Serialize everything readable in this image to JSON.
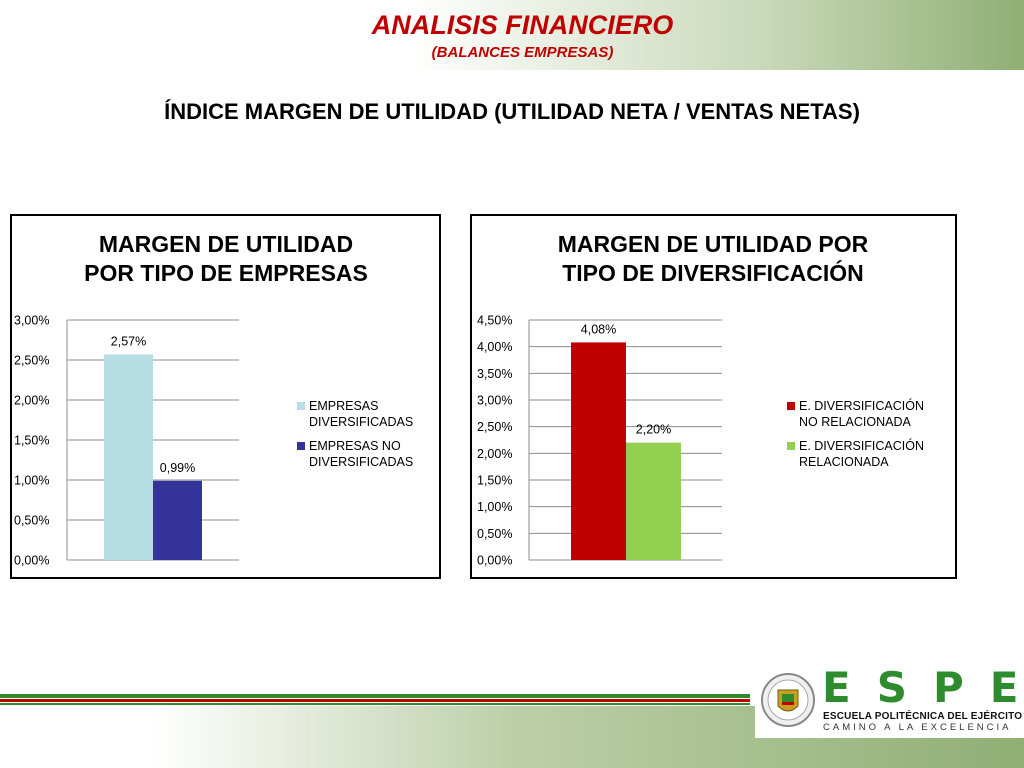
{
  "header": {
    "title": "ANALISIS FINANCIERO",
    "subtitle": "(BALANCES EMPRESAS)"
  },
  "slide_title": "ÍNDICE MARGEN DE UTILIDAD (UTILIDAD NETA / VENTAS NETAS)",
  "logo": {
    "letters": "ESPE",
    "name": "ESCUELA POLITÉCNICA DEL EJÉRCITO",
    "motto": "CAMINO A LA EXCELENCIA",
    "seal_text": "ESCUELA POLITÉCNICA DEL EJÉRCITO",
    "seal_country": "ECUADOR"
  },
  "colors": {
    "header_red": "#c00000",
    "light_blue": "#b7dee4",
    "dark_blue": "#333399",
    "red": "#c00000",
    "green": "#92d050"
  },
  "chart_data": [
    {
      "type": "bar",
      "title": [
        "MARGEN DE UTILIDAD",
        "POR TIPO DE EMPRESAS"
      ],
      "ylim": [
        0,
        3.0
      ],
      "yticks": [
        "0,00%",
        "0,50%",
        "1,00%",
        "1,50%",
        "2,00%",
        "2,50%",
        "3,00%"
      ],
      "series": [
        {
          "name": [
            "EMPRESAS",
            "DIVERSIFICADAS"
          ],
          "values": [
            2.57
          ],
          "labels": [
            "2,57%"
          ],
          "color": "#b7dee4"
        },
        {
          "name": [
            "EMPRESAS NO",
            "DIVERSIFICADAS"
          ],
          "values": [
            0.99
          ],
          "labels": [
            "0,99%"
          ],
          "color": "#333399"
        }
      ],
      "grid": true,
      "legend": "right"
    },
    {
      "type": "bar",
      "title": [
        "MARGEN DE UTILIDAD POR",
        "TIPO DE DIVERSIFICACIÓN"
      ],
      "ylim": [
        0,
        4.5
      ],
      "yticks": [
        "0,00%",
        "0,50%",
        "1,00%",
        "1,50%",
        "2,00%",
        "2,50%",
        "3,00%",
        "3,50%",
        "4,00%",
        "4,50%"
      ],
      "series": [
        {
          "name": [
            "E. DIVERSIFICACIÓN",
            "NO RELACIONADA"
          ],
          "values": [
            4.08
          ],
          "labels": [
            "4,08%"
          ],
          "color": "#c00000"
        },
        {
          "name": [
            "E. DIVERSIFICACIÓN",
            "RELACIONADA"
          ],
          "values": [
            2.2
          ],
          "labels": [
            "2,20%"
          ],
          "color": "#92d050"
        }
      ],
      "grid": true,
      "legend": "right"
    }
  ]
}
